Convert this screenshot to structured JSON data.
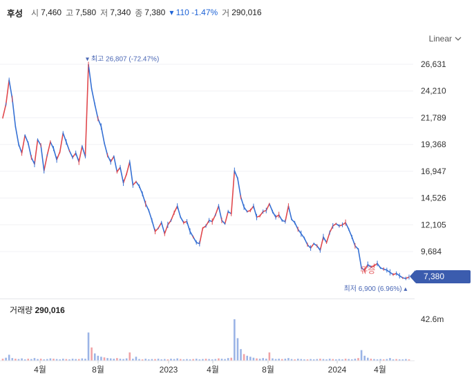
{
  "header": {
    "name": "후성",
    "open_label": "시",
    "open": "7,460",
    "high_label": "고",
    "high": "7,580",
    "low_label": "저",
    "low": "7,340",
    "close_label": "종",
    "close": "7,380",
    "change": "▾ 110 -1.47%",
    "volume_label": "거",
    "volume": "290,016"
  },
  "controls": {
    "scale_label": "Linear"
  },
  "current_price_tag": "7,380",
  "volume_panel": {
    "label": "거래량",
    "value": "290,016",
    "axis_label": "42.6m"
  },
  "colors": {
    "up": "#e0474c",
    "down": "#3570d4",
    "price_tag": "#3b5cae",
    "volume": "#9bb4e6"
  },
  "chart_data": {
    "type": "line",
    "title": "",
    "y_ticks": [
      26631,
      24210,
      21789,
      19368,
      16947,
      14526,
      12105,
      9684
    ],
    "y_tick_labels": [
      "26,631",
      "24,210",
      "21,789",
      "19,368",
      "16,947",
      "14,526",
      "12,105",
      "9,684"
    ],
    "x_tick_labels": [
      "4월",
      "8월",
      "2023",
      "4월",
      "8월",
      "2024",
      "4월"
    ],
    "ylim": [
      6500,
      27500
    ],
    "annotations": {
      "max": "최고 26,807 (-72.47%)",
      "min": "최저 6,900 (6.96%)",
      "event": "유증"
    },
    "series": [
      {
        "values": [
          21800,
          23000,
          25200,
          23500,
          21000,
          19400,
          18600,
          20200,
          19500,
          18200,
          17600,
          19800,
          19300,
          17000,
          18400,
          19600,
          19000,
          18000,
          18700,
          20400,
          19600,
          18800,
          18200,
          18600,
          17800,
          19200,
          18300,
          26600,
          24400,
          23000,
          21700,
          21000,
          19500,
          18400,
          17800,
          18300,
          16900,
          17300,
          15900,
          16700,
          17800,
          15700,
          16000,
          15600,
          14900,
          14000,
          13400,
          12500,
          11500,
          11800,
          12300,
          11300,
          12100,
          12500,
          13200,
          13800,
          12800,
          12300,
          12400,
          11500,
          11000,
          10500,
          10400,
          11800,
          12000,
          12500,
          12400,
          13000,
          13800,
          12500,
          12200,
          13300,
          13100,
          17000,
          16300,
          14600,
          13700,
          13300,
          13400,
          13800,
          12800,
          12900,
          13300,
          13400,
          14000,
          13300,
          12800,
          13000,
          12500,
          12400,
          13800,
          12600,
          12300,
          11700,
          11300,
          10900,
          10300,
          10000,
          10400,
          10200,
          9800,
          11000,
          10500,
          11400,
          12000,
          12200,
          12000,
          12100,
          12300,
          11700,
          11000,
          10200,
          9900,
          8200,
          8000,
          8500,
          8300,
          8400,
          8600,
          8200,
          8100,
          8000,
          7800,
          7600,
          7700,
          7500,
          7300,
          7250,
          7380
        ]
      }
    ],
    "volume": [
      0.6,
      0.9,
      1.8,
      0.8,
      0.6,
      0.5,
      0.7,
      0.4,
      0.6,
      0.5,
      0.8,
      0.5,
      0.6,
      0.4,
      0.5,
      0.7,
      0.6,
      0.5,
      0.4,
      0.6,
      0.5,
      0.4,
      0.6,
      0.5,
      0.5,
      0.7,
      0.6,
      8.5,
      4.0,
      2.2,
      1.5,
      1.2,
      1.0,
      0.8,
      0.7,
      0.6,
      0.8,
      0.6,
      0.5,
      0.7,
      2.5,
      0.6,
      1.2,
      0.5,
      0.4,
      0.6,
      0.4,
      0.5,
      0.5,
      0.6,
      0.4,
      0.5,
      0.4,
      0.6,
      0.5,
      0.7,
      0.5,
      0.4,
      0.5,
      0.4,
      0.5,
      0.6,
      0.4,
      0.5,
      0.6,
      0.5,
      0.4,
      0.5,
      0.7,
      0.6,
      0.5,
      0.8,
      0.9,
      12.5,
      6.8,
      3.5,
      2.0,
      1.5,
      1.2,
      0.9,
      0.7,
      0.6,
      0.8,
      0.6,
      2.5,
      0.7,
      0.5,
      0.6,
      0.5,
      0.6,
      0.8,
      0.5,
      0.4,
      0.6,
      0.5,
      0.4,
      0.4,
      0.5,
      0.4,
      0.5,
      0.6,
      0.5,
      0.4,
      0.6,
      0.5,
      0.4,
      0.5,
      0.4,
      0.6,
      0.5,
      0.4,
      0.6,
      0.8,
      3.2,
      1.5,
      0.9,
      0.6,
      0.5,
      0.4,
      0.5,
      0.4,
      0.5,
      0.8,
      0.4,
      0.5,
      0.4,
      0.4,
      0.5,
      0.4
    ]
  }
}
